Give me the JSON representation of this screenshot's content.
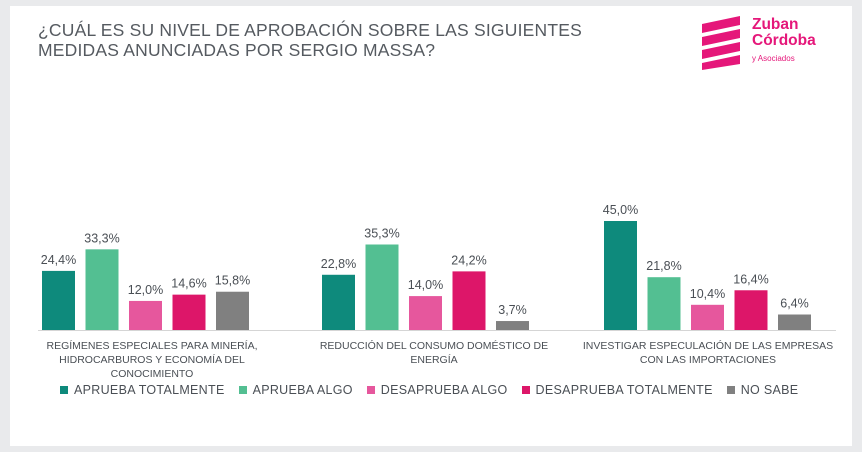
{
  "title": "¿CUÁL ES SU NIVEL DE APROBACIÓN SOBRE LAS SIGUIENTES MEDIDAS ANUNCIADAS POR SERGIO MASSA?",
  "logo": {
    "line1": "Zuban",
    "line2": "Córdoba",
    "sub": "y Asociados"
  },
  "colors": {
    "background": "#ffffff",
    "brand": "#e5177a",
    "series": [
      "#0e8a7c",
      "#53bf92",
      "#e6579d",
      "#dd1669",
      "#808080"
    ]
  },
  "chart_data": {
    "type": "bar",
    "categories": [
      [
        "REGÍMENES ESPECIALES PARA MINERÍA,",
        "HIDROCARBUROS Y ECONOMÍA DEL",
        "CONOCIMIENTO"
      ],
      [
        "REDUCCIÓN DEL CONSUMO DOMÉSTICO DE",
        "ENERGÍA"
      ],
      [
        "INVESTIGAR ESPECULACIÓN DE LAS EMPRESAS",
        "CON LAS IMPORTACIONES"
      ]
    ],
    "series": [
      {
        "name": "APRUEBA TOTALMENTE",
        "color": "#0e8a7c",
        "values": [
          24.4,
          22.8,
          45.0
        ],
        "labels": [
          "24,4%",
          "22,8%",
          "45,0%"
        ]
      },
      {
        "name": "APRUEBA ALGO",
        "color": "#53bf92",
        "values": [
          33.3,
          35.3,
          21.8
        ],
        "labels": [
          "33,3%",
          "35,3%",
          "21,8%"
        ]
      },
      {
        "name": "DESAPRUEBA ALGO",
        "color": "#e6579d",
        "values": [
          12.0,
          14.0,
          10.4
        ],
        "labels": [
          "12,0%",
          "14,0%",
          "10,4%"
        ]
      },
      {
        "name": "DESAPRUEBA TOTALMENTE",
        "color": "#dd1669",
        "values": [
          14.6,
          24.2,
          16.4
        ],
        "labels": [
          "14,6%",
          "24,2%",
          "16,4%"
        ]
      },
      {
        "name": "NO SABE",
        "color": "#808080",
        "values": [
          15.8,
          3.7,
          6.4
        ],
        "labels": [
          "15,8%",
          "3,7%",
          "6,4%"
        ]
      }
    ],
    "ylim": [
      0,
      45
    ],
    "grid": false,
    "legend_position": "bottom"
  }
}
